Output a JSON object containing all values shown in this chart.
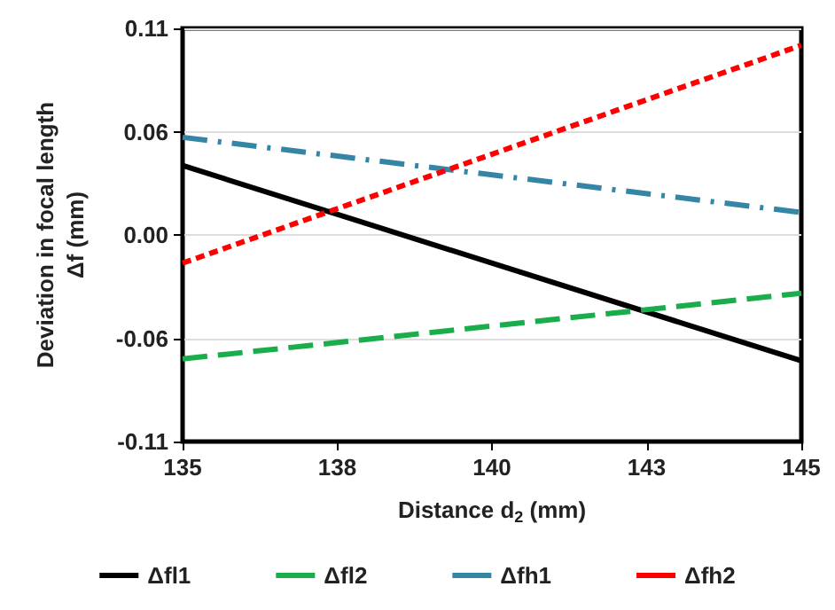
{
  "chart_data": {
    "type": "line",
    "xlabel": "Distance d$_{2}$ (mm)",
    "ylabel": "Deviation in focal length\nΔf (mm)",
    "x": [
      135,
      145
    ],
    "series": [
      {
        "name": "Δfl1",
        "color": "#000000",
        "values": [
          0.037,
          -0.067
        ],
        "line_style": "solid"
      },
      {
        "name": "Δfl2",
        "color": "#1aad4b",
        "values": [
          -0.066,
          -0.031
        ],
        "line_style": "dashed"
      },
      {
        "name": "Δfh1",
        "color": "#3585a6",
        "values": [
          0.052,
          0.012
        ],
        "line_style": "dashdot"
      },
      {
        "name": "Δfh2",
        "color": "#ff0000",
        "values": [
          -0.015,
          0.101
        ],
        "line_style": "dotted"
      }
    ],
    "xlim": [
      135,
      145
    ],
    "xticks": [
      135,
      {
        "value": 137.5,
        "label": "138"
      },
      140,
      {
        "value": 142.5,
        "label": "143"
      },
      145
    ],
    "ylim": [
      -0.11,
      0.11
    ],
    "yticks": [
      {
        "value": -0.11,
        "label": "-0.11"
      },
      {
        "value": -0.055,
        "label": "-0.06"
      },
      {
        "value": 0,
        "label": "0.00"
      },
      {
        "value": 0.055,
        "label": "0.06"
      },
      {
        "value": 0.11,
        "label": "0.11"
      }
    ],
    "grid": "y",
    "legend": "bottom",
    "marker": "none"
  }
}
